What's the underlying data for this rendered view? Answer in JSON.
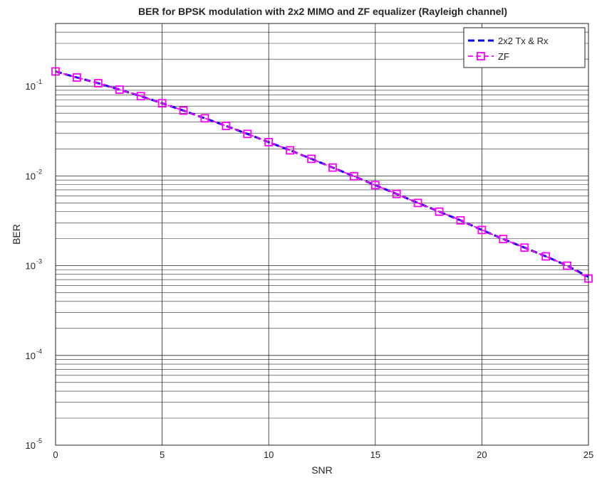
{
  "chart_data": {
    "type": "line",
    "title": "BER for BPSK modulation with 2x2 MIMO and ZF equalizer (Rayleigh channel)",
    "xlabel": "SNR",
    "ylabel": "BER",
    "xlim": [
      0,
      25
    ],
    "ylim": [
      1e-05,
      0.5
    ],
    "yscale": "log",
    "grid": "on (major and minor lines on both axes)",
    "legend_location": "top-right",
    "x_ticks": [
      "0",
      "5",
      "10",
      "15",
      "20",
      "25"
    ],
    "y_ticks": [
      {
        "base": "10",
        "exp": "-1",
        "value": 0.1
      },
      {
        "base": "10",
        "exp": "-2",
        "value": 0.01
      },
      {
        "base": "10",
        "exp": "-3",
        "value": 0.001
      },
      {
        "base": "10",
        "exp": "-4",
        "value": 0.0001
      },
      {
        "base": "10",
        "exp": "-5",
        "value": 1e-05
      }
    ],
    "x": [
      0,
      1,
      2,
      3,
      4,
      5,
      6,
      7,
      8,
      9,
      10,
      11,
      12,
      13,
      14,
      15,
      16,
      17,
      18,
      19,
      20,
      21,
      22,
      23,
      24,
      25
    ],
    "series": [
      {
        "name": "2x2 Tx & Rx",
        "color": "#0000ff",
        "style": "dashed, thick",
        "marker": "none",
        "values": [
          0.146,
          0.125,
          0.108,
          0.0915,
          0.0775,
          0.0645,
          0.0535,
          0.0439,
          0.0361,
          0.0294,
          0.0238,
          0.0193,
          0.0155,
          0.0124,
          0.0099,
          0.0079,
          0.0063,
          0.005,
          0.004,
          0.0032,
          0.0025,
          0.00198,
          0.00159,
          0.00127,
          0.001,
          0.00075
        ]
      },
      {
        "name": "ZF",
        "color": "#ff00ff",
        "style": "dashed",
        "marker": "square",
        "values": [
          0.146,
          0.125,
          0.108,
          0.0915,
          0.0775,
          0.0645,
          0.0535,
          0.0439,
          0.0361,
          0.0294,
          0.0238,
          0.0193,
          0.0155,
          0.0124,
          0.0099,
          0.0079,
          0.0063,
          0.005,
          0.004,
          0.0032,
          0.0025,
          0.00198,
          0.00159,
          0.00127,
          0.001,
          0.00072
        ]
      }
    ]
  }
}
